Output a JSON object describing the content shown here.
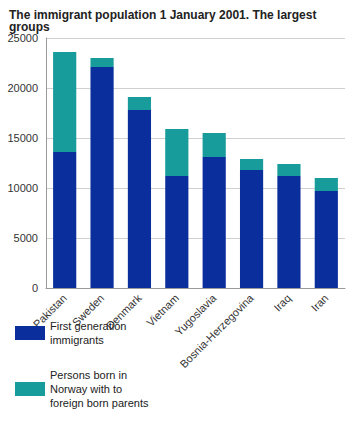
{
  "chart_data": {
    "type": "bar",
    "title": "The immigrant population 1 January 2001. The largest groups",
    "categories": [
      "Pakistan",
      "Sweden",
      "Denmark",
      "Vietnam",
      "Yugoslavia",
      "Bosnia-Herzegovina",
      "Iraq",
      "Iran"
    ],
    "series": [
      {
        "name": "First generation immigrants",
        "color": "#0a2f9c",
        "values": [
          13600,
          22100,
          17800,
          11200,
          13100,
          11800,
          11200,
          9700
        ]
      },
      {
        "name": "Persons born in Norway with to foreign born parents",
        "color": "#189b9b",
        "values": [
          10000,
          900,
          1300,
          4700,
          2400,
          1100,
          1200,
          1300
        ]
      }
    ],
    "stacked": true,
    "ylim": [
      0,
      25000
    ],
    "yticks": [
      0,
      5000,
      10000,
      15000,
      20000,
      25000
    ],
    "grid": true,
    "legend": "bottom"
  }
}
